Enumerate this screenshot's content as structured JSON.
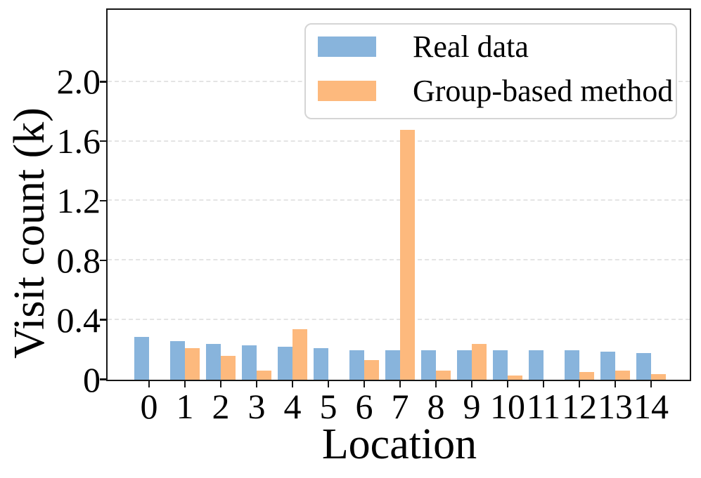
{
  "chart_data": {
    "type": "bar",
    "title": "",
    "xlabel": "Location",
    "ylabel": "Visit count (k)",
    "categories": [
      "0",
      "1",
      "2",
      "3",
      "4",
      "5",
      "6",
      "7",
      "8",
      "9",
      "10",
      "11",
      "12",
      "13",
      "14"
    ],
    "series": [
      {
        "name": "Real data",
        "color": "#88b4dc",
        "values": [
          0.29,
          0.26,
          0.24,
          0.23,
          0.22,
          0.21,
          0.2,
          0.2,
          0.2,
          0.2,
          0.2,
          0.2,
          0.2,
          0.19,
          0.18
        ]
      },
      {
        "name": "Group-based method",
        "color": "#fdb97d",
        "values": [
          0.0,
          0.21,
          0.16,
          0.06,
          0.34,
          0.0,
          0.13,
          1.68,
          0.06,
          0.24,
          0.03,
          0.0,
          0.05,
          0.06,
          0.04
        ]
      }
    ],
    "ylim": [
      0,
      2.48
    ],
    "yticks": [
      {
        "value": 0.0,
        "label": "0"
      },
      {
        "value": 0.4,
        "label": "0.4"
      },
      {
        "value": 0.8,
        "label": "0.8"
      },
      {
        "value": 1.2,
        "label": "1.2"
      },
      {
        "value": 1.6,
        "label": "1.6"
      },
      {
        "value": 2.0,
        "label": "2.0"
      }
    ],
    "grid": "horizontal-dashed",
    "legend_position": "upper-right"
  },
  "colors": {
    "real_data": "#88b4dc",
    "group_based": "#fdb97d",
    "spine": "#161616",
    "gridline": "#e4e4e4",
    "legend_border": "#d5d5d5",
    "background": "#ffffff"
  }
}
